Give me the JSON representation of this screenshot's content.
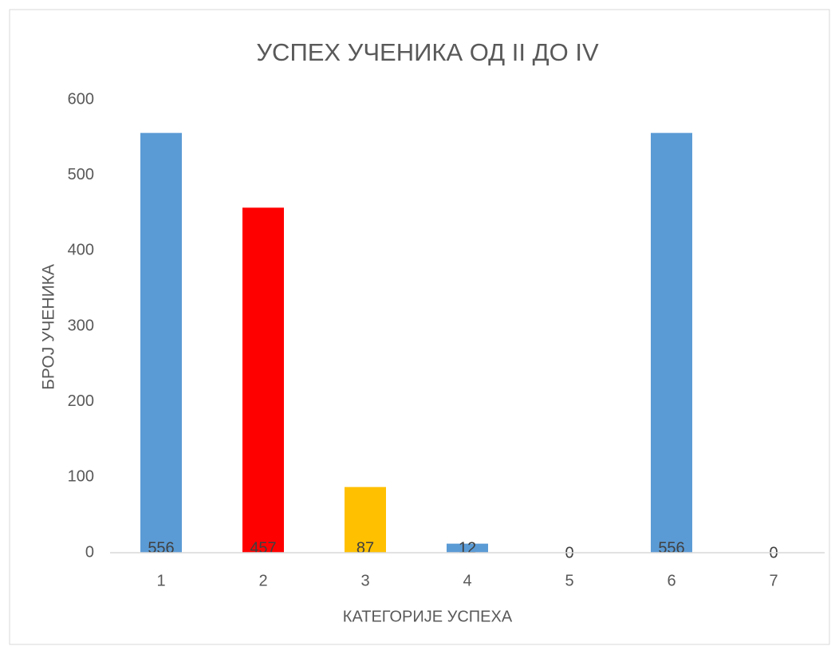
{
  "chart_data": {
    "type": "bar",
    "title": "УСПЕХ УЧЕНИКА ОД II  ДО IV",
    "x_label": "КАТЕГОРИЈЕ УСПЕХА",
    "y_label": "БРОЈ УЧЕНИКА",
    "categories": [
      "1",
      "2",
      "3",
      "4",
      "5",
      "6",
      "7"
    ],
    "values": [
      556,
      457,
      87,
      12,
      0,
      556,
      0
    ],
    "colors": [
      "#5b9bd5",
      "#ff0000",
      "#ffc000",
      "#5b9bd5",
      "#5b9bd5",
      "#5b9bd5",
      "#5b9bd5"
    ],
    "ylim": [
      0,
      600
    ],
    "yticks": [
      0,
      100,
      200,
      300,
      400,
      500,
      600
    ],
    "grid": false
  }
}
